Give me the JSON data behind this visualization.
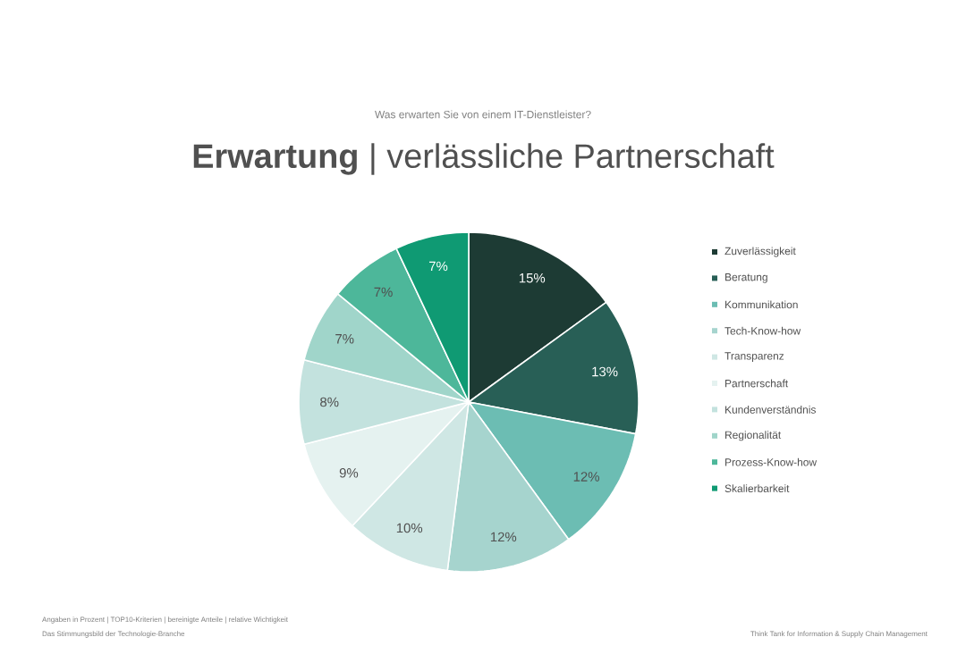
{
  "chart_data": {
    "type": "pie",
    "subtitle": "Was erwarten Sie von einem IT-Dienstleister?",
    "title": "**Erwartung** | verlässliche Partnerschaft",
    "categories": [
      "Zuverlässigkeit",
      "Beratung",
      "Kommunikation",
      "Tech-Know-how",
      "Transparenz",
      "Partnerschaft",
      "Kundenverständnis",
      "Regionalität",
      "Prozess-Know-how",
      "Skalierbarkeit"
    ],
    "values": [
      15,
      13,
      12,
      12,
      10,
      9,
      8,
      7,
      7,
      7
    ],
    "value_labels": [
      "15%",
      "13%",
      "12%",
      "12%",
      "10%",
      "9%",
      "8%",
      "7%",
      "7%",
      "7%"
    ],
    "colors": [
      "#1d3b34",
      "#285f56",
      "#6cbdb3",
      "#a6d4ce",
      "#cfe7e4",
      "#e5f2f0",
      "#c3e2de",
      "#a0d5ca",
      "#4db79a",
      "#0f9a73"
    ],
    "legend": "right",
    "annotations": [
      "Angaben in Prozent | TOP10-Kriterien | bereinigte Anteile | relative Wichtigkeit",
      "Das Stimmungsbild der Technologie-Branche",
      "Think Tank for Information & Supply Chain Management"
    ]
  }
}
